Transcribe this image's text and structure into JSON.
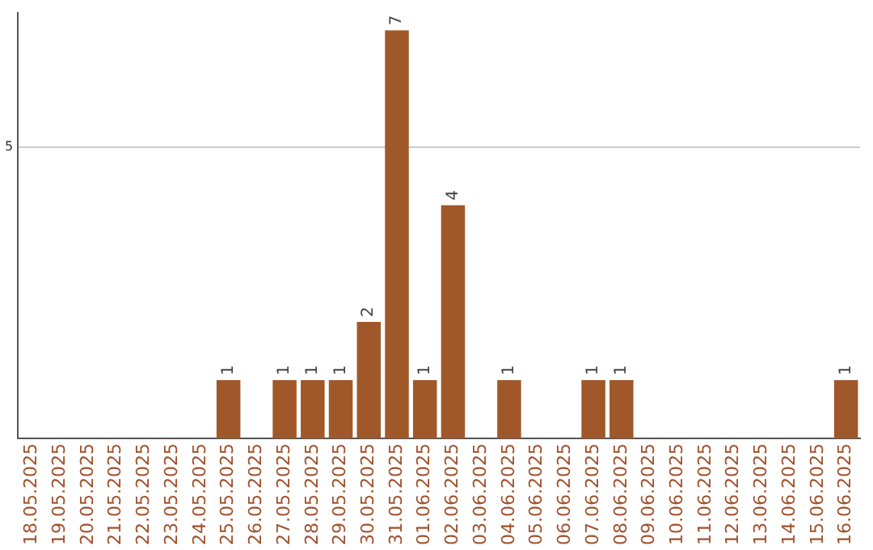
{
  "chart_data": {
    "type": "bar",
    "categories": [
      "18.05.2025",
      "19.05.2025",
      "20.05.2025",
      "21.05.2025",
      "22.05.2025",
      "23.05.2025",
      "24.05.2025",
      "25.05.2025",
      "26.05.2025",
      "27.05.2025",
      "28.05.2025",
      "29.05.2025",
      "30.05.2025",
      "31.05.2025",
      "01.06.2025",
      "02.06.2025",
      "03.06.2025",
      "04.06.2025",
      "05.06.2025",
      "06.06.2025",
      "07.06.2025",
      "08.06.2025",
      "09.06.2025",
      "10.06.2025",
      "11.06.2025",
      "12.06.2025",
      "13.06.2025",
      "14.06.2025",
      "15.06.2025",
      "16.06.2025"
    ],
    "values": [
      0,
      0,
      0,
      0,
      0,
      0,
      0,
      1,
      0,
      1,
      1,
      1,
      2,
      7,
      1,
      4,
      0,
      1,
      0,
      0,
      1,
      1,
      0,
      0,
      0,
      0,
      0,
      0,
      0,
      1
    ],
    "value_labels": [
      null,
      null,
      null,
      null,
      null,
      null,
      null,
      "1",
      null,
      "1",
      "1",
      "1",
      "2",
      "7",
      "1",
      "4",
      null,
      "1",
      null,
      null,
      "1",
      "1",
      null,
      null,
      null,
      null,
      null,
      null,
      null,
      "1"
    ],
    "color": "#a0582a",
    "ylim": [
      0,
      7.3
    ],
    "yticks": [
      5
    ],
    "grid": "y",
    "legend": false
  }
}
